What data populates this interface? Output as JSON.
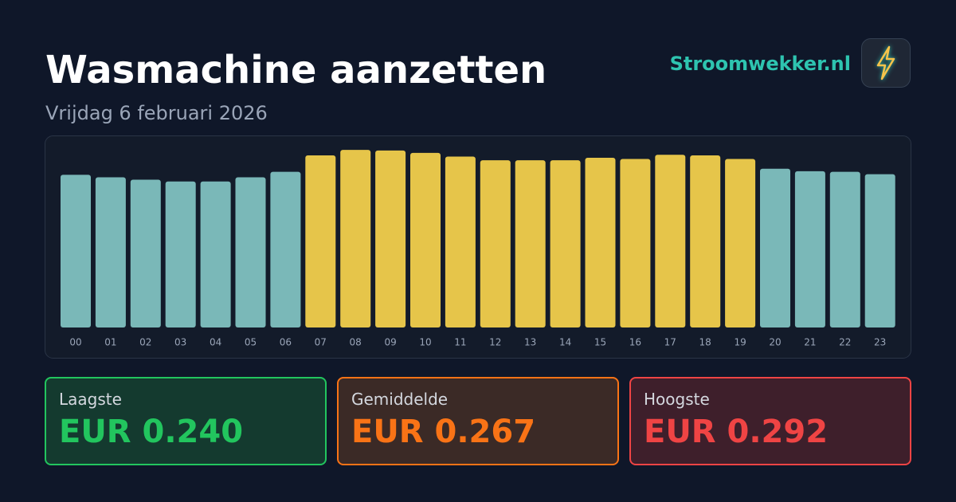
{
  "chart_data": {
    "type": "bar",
    "title": "Wasmachine aanzetten",
    "subtitle": "Vrijdag 6 februari 2026",
    "categories": [
      "00",
      "01",
      "02",
      "03",
      "04",
      "05",
      "06",
      "07",
      "08",
      "09",
      "10",
      "11",
      "12",
      "13",
      "14",
      "15",
      "16",
      "17",
      "18",
      "19",
      "20",
      "21",
      "22",
      "23"
    ],
    "values": [
      0.251,
      0.247,
      0.243,
      0.24,
      0.24,
      0.247,
      0.256,
      0.283,
      0.292,
      0.291,
      0.287,
      0.281,
      0.275,
      0.275,
      0.275,
      0.279,
      0.277,
      0.284,
      0.283,
      0.277,
      0.261,
      0.257,
      0.256,
      0.252
    ],
    "colors": [
      "#7ab8b8",
      "#7ab8b8",
      "#7ab8b8",
      "#7ab8b8",
      "#7ab8b8",
      "#7ab8b8",
      "#7ab8b8",
      "#e6c54a",
      "#e6c54a",
      "#e6c54a",
      "#e6c54a",
      "#e6c54a",
      "#e6c54a",
      "#e6c54a",
      "#e6c54a",
      "#e6c54a",
      "#e6c54a",
      "#e6c54a",
      "#e6c54a",
      "#e6c54a",
      "#7ab8b8",
      "#7ab8b8",
      "#7ab8b8",
      "#7ab8b8"
    ],
    "ylim": [
      0,
      0.3
    ]
  },
  "brand": "Stroomwekker.nl",
  "stats": [
    {
      "label": "Laagste",
      "value": "EUR 0.240",
      "color": "#22c55e",
      "background": "#143a2f"
    },
    {
      "label": "Gemiddelde",
      "value": "EUR 0.267",
      "color": "#f97316",
      "background": "#3b2a26"
    },
    {
      "label": "Hoogste",
      "value": "EUR 0.292",
      "color": "#ef4444",
      "background": "#3e1f2b"
    }
  ]
}
